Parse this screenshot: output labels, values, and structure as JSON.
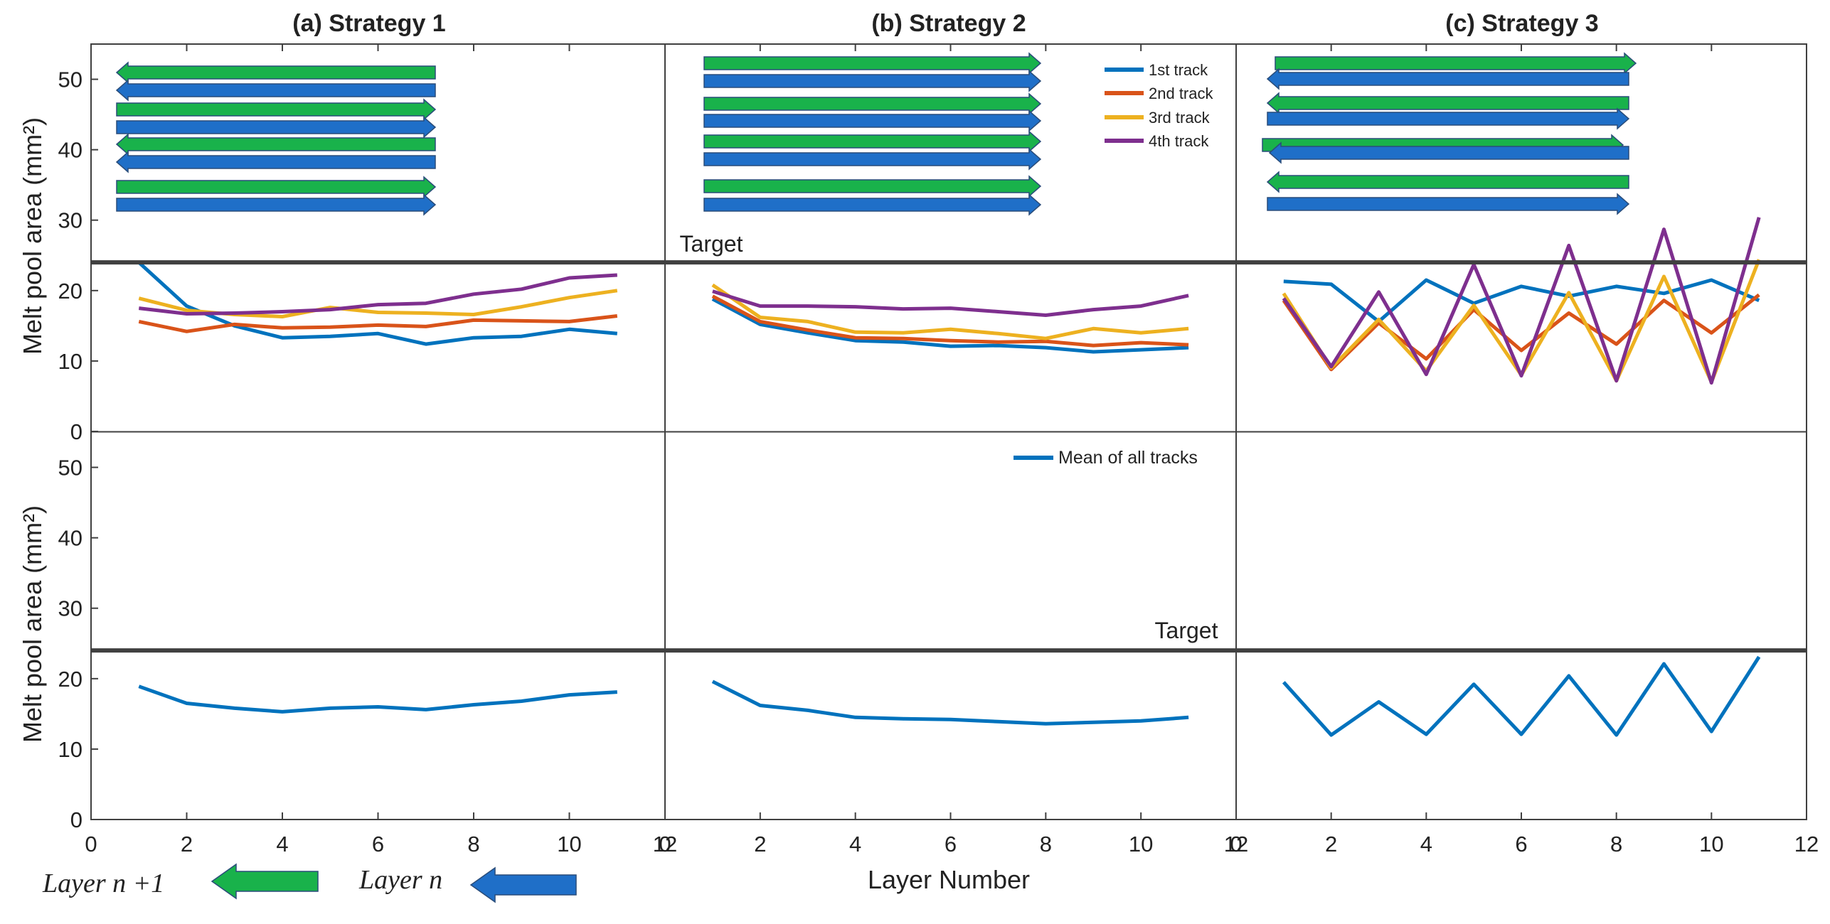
{
  "figure": {
    "x_axis_label": "Layer Number",
    "y_axis_label": "Melt pool area (mm²)",
    "target_label": "Target",
    "target_value": 24,
    "ylim": [
      0,
      55
    ],
    "xlim": [
      0,
      12
    ],
    "x_ticks": [
      0,
      2,
      4,
      6,
      8,
      10,
      12
    ],
    "y_ticks": [
      0,
      10,
      20,
      30,
      40,
      50
    ],
    "bottom_legend": {
      "layer_n_plus_1": "Layer n +1",
      "layer_n": "Layer n"
    }
  },
  "colors": {
    "track1": "#0072bd",
    "track2": "#d95319",
    "track3": "#edb120",
    "track4": "#7e2f8e",
    "mean": "#0072bd",
    "green_arrow": "#19b24b",
    "blue_arrow": "#1f6fc8",
    "arrow_border": "#2a4d7a",
    "target_line": "#404040",
    "axis": "#404040"
  },
  "chart_data": [
    {
      "type": "line",
      "panel": "top",
      "strategy": 1,
      "title": "(a) Strategy 1",
      "ylabel": "Melt pool area (mm²)",
      "x": [
        1,
        2,
        3,
        4,
        5,
        6,
        7,
        8,
        9,
        10,
        11
      ],
      "series": [
        {
          "name": "1st track",
          "values": [
            24,
            17.8,
            15,
            13.3,
            13.5,
            13.9,
            12.4,
            13.3,
            13.5,
            14.5,
            13.9
          ]
        },
        {
          "name": "2nd track",
          "values": [
            15.6,
            14.2,
            15.2,
            14.7,
            14.8,
            15.1,
            14.9,
            15.8,
            15.7,
            15.6,
            16.4
          ]
        },
        {
          "name": "3rd track",
          "values": [
            18.9,
            17.2,
            16.6,
            16.3,
            17.6,
            16.9,
            16.8,
            16.6,
            17.7,
            19.0,
            20.0
          ]
        },
        {
          "name": "4th track",
          "values": [
            17.5,
            16.7,
            16.8,
            17.0,
            17.3,
            18.0,
            18.2,
            19.5,
            20.2,
            21.8,
            22.2
          ]
        }
      ]
    },
    {
      "type": "line",
      "panel": "top",
      "strategy": 2,
      "title": "(b) Strategy 2",
      "x": [
        1,
        2,
        3,
        4,
        5,
        6,
        7,
        8,
        9,
        10,
        11
      ],
      "series": [
        {
          "name": "1st track",
          "values": [
            18.8,
            15.2,
            14.0,
            12.9,
            12.7,
            12.1,
            12.2,
            11.9,
            11.3,
            11.6,
            11.9
          ]
        },
        {
          "name": "2nd track",
          "values": [
            19.2,
            15.6,
            14.4,
            13.3,
            13.2,
            12.9,
            12.7,
            12.8,
            12.2,
            12.6,
            12.3
          ]
        },
        {
          "name": "3rd track",
          "values": [
            20.8,
            16.2,
            15.6,
            14.1,
            14.0,
            14.5,
            13.9,
            13.2,
            14.6,
            14.0,
            14.6
          ]
        },
        {
          "name": "4th track",
          "values": [
            19.9,
            17.8,
            17.8,
            17.7,
            17.4,
            17.5,
            17.0,
            16.5,
            17.3,
            17.8,
            19.3
          ]
        }
      ]
    },
    {
      "type": "line",
      "panel": "top",
      "strategy": 3,
      "title": "(c) Strategy 3",
      "x": [
        1,
        2,
        3,
        4,
        5,
        6,
        7,
        8,
        9,
        10,
        11
      ],
      "series": [
        {
          "name": "1st track",
          "values": [
            21.3,
            20.9,
            15.6,
            21.5,
            18.2,
            20.6,
            19.2,
            20.6,
            19.6,
            21.5,
            18.6
          ]
        },
        {
          "name": "2nd track",
          "values": [
            18.6,
            8.8,
            15.4,
            10.3,
            17.3,
            11.5,
            16.8,
            12.4,
            18.6,
            14.0,
            19.4
          ]
        },
        {
          "name": "3rd track",
          "values": [
            19.6,
            9.0,
            15.9,
            8.6,
            17.9,
            8.0,
            19.7,
            7.2,
            22.0,
            7.0,
            24.4
          ]
        },
        {
          "name": "4th track",
          "values": [
            18.9,
            9.2,
            19.8,
            8.1,
            23.7,
            7.9,
            26.4,
            7.2,
            28.7,
            6.9,
            30.4
          ]
        }
      ]
    },
    {
      "type": "line",
      "panel": "bottom",
      "strategy": 1,
      "x": [
        1,
        2,
        3,
        4,
        5,
        6,
        7,
        8,
        9,
        10,
        11
      ],
      "series": [
        {
          "name": "Mean of all tracks",
          "values": [
            18.9,
            16.5,
            15.8,
            15.3,
            15.8,
            16.0,
            15.6,
            16.3,
            16.8,
            17.7,
            18.1
          ]
        }
      ]
    },
    {
      "type": "line",
      "panel": "bottom",
      "strategy": 2,
      "x": [
        1,
        2,
        3,
        4,
        5,
        6,
        7,
        8,
        9,
        10,
        11
      ],
      "series": [
        {
          "name": "Mean of all tracks",
          "values": [
            19.6,
            16.2,
            15.5,
            14.5,
            14.3,
            14.2,
            13.9,
            13.6,
            13.8,
            14.0,
            14.5
          ]
        }
      ]
    },
    {
      "type": "line",
      "panel": "bottom",
      "strategy": 3,
      "x": [
        1,
        2,
        3,
        4,
        5,
        6,
        7,
        8,
        9,
        10,
        11
      ],
      "series": [
        {
          "name": "Mean of all tracks",
          "values": [
            19.5,
            12.0,
            16.7,
            12.1,
            19.2,
            12.1,
            20.4,
            12.0,
            22.1,
            12.5,
            23.1
          ]
        }
      ]
    }
  ]
}
